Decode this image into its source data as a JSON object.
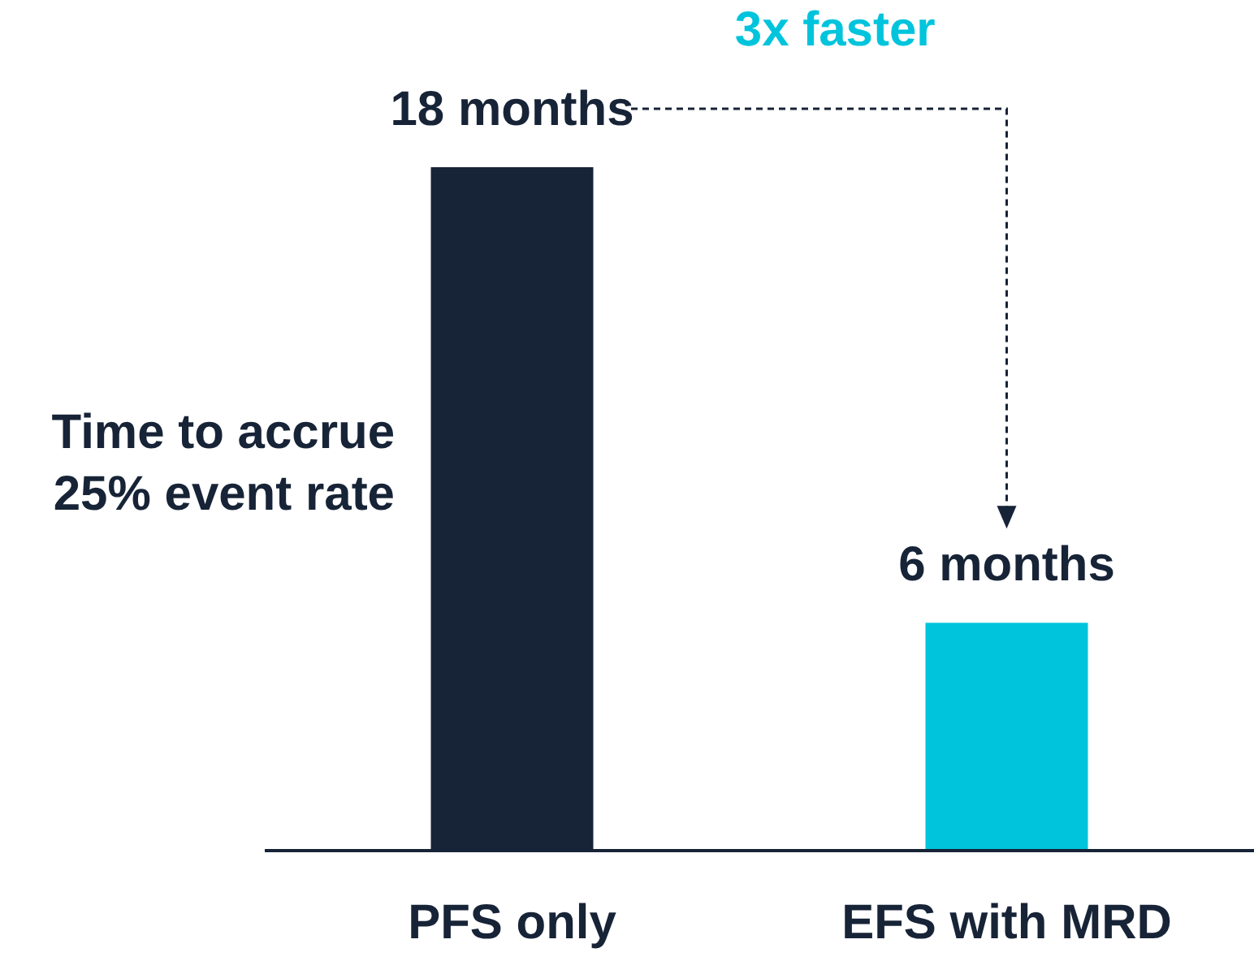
{
  "chart_data": {
    "type": "bar",
    "ylabel": "Time to accrue 25% event rate",
    "categories": [
      "PFS only",
      "EFS with MRD"
    ],
    "values": [
      18,
      6
    ],
    "colors": [
      "#172336",
      "#00c4dc"
    ],
    "value_labels": [
      "18 months",
      "6 months"
    ],
    "annotations": [
      "3x faster"
    ]
  }
}
